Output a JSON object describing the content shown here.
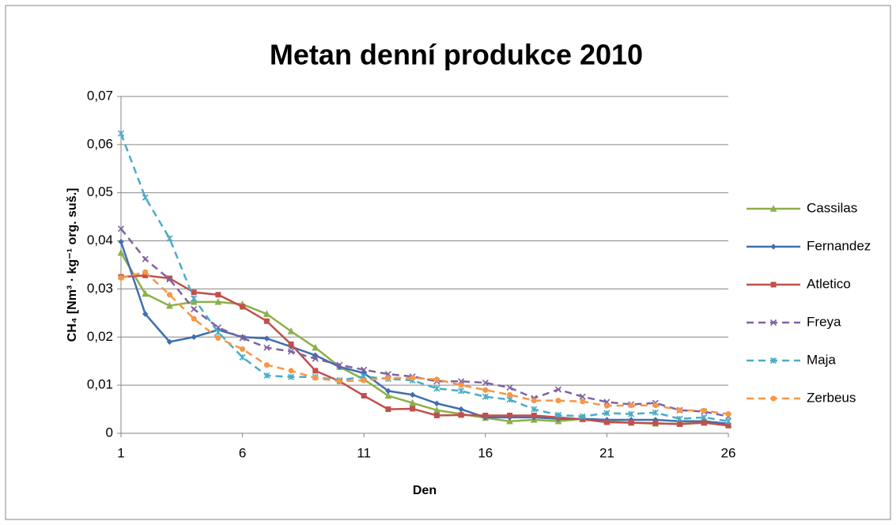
{
  "chart_data": {
    "type": "line",
    "title": "Metan denní produkce 2010",
    "x_label": "Den",
    "y_label": "CH₄ [Nm³ · kg⁻¹ org. suš.]",
    "x": [
      1,
      2,
      3,
      4,
      5,
      6,
      7,
      8,
      9,
      10,
      11,
      12,
      13,
      14,
      15,
      16,
      17,
      18,
      19,
      20,
      21,
      22,
      23,
      24,
      25,
      26
    ],
    "xlim": [
      1,
      26
    ],
    "xticks": [
      1,
      6,
      11,
      16,
      21,
      26
    ],
    "ylim": [
      0,
      0.07
    ],
    "yticks": [
      0,
      {
        "value": 0.01,
        "label": "0,01"
      },
      {
        "value": 0.02,
        "label": "0,02"
      },
      {
        "value": 0.03,
        "label": "0,03"
      },
      {
        "value": 0.04,
        "label": "0,04"
      },
      {
        "value": 0.05,
        "label": "0,05"
      },
      {
        "value": 0.06,
        "label": "0,06"
      },
      {
        "value": 0.07,
        "label": "0,07"
      }
    ],
    "grid": true,
    "legend": "right",
    "series": [
      {
        "name": "Cassilas",
        "color": "#8cb04a",
        "marker": "triangle",
        "dashed": false,
        "values": [
          0.0375,
          0.029,
          0.0265,
          0.0273,
          0.0273,
          0.0268,
          0.0248,
          0.0212,
          0.0178,
          0.0138,
          0.0112,
          0.0078,
          0.0063,
          0.0048,
          0.004,
          0.0032,
          0.0025,
          0.0028,
          0.0025,
          0.003,
          0.0025,
          0.0022,
          0.002,
          0.002,
          0.0022,
          0.0018
        ]
      },
      {
        "name": "Fernandez",
        "color": "#3f6fb0",
        "marker": "diamond",
        "dashed": false,
        "values": [
          0.0398,
          0.0248,
          0.019,
          0.02,
          0.0215,
          0.02,
          0.0197,
          0.018,
          0.0162,
          0.0138,
          0.0125,
          0.0088,
          0.008,
          0.0062,
          0.005,
          0.0033,
          0.0033,
          0.0033,
          0.003,
          0.003,
          0.0028,
          0.0028,
          0.0028,
          0.0025,
          0.0025,
          0.002
        ]
      },
      {
        "name": "Atletico",
        "color": "#c0504d",
        "marker": "square",
        "dashed": false,
        "values": [
          0.0325,
          0.0328,
          0.0322,
          0.0293,
          0.0288,
          0.0263,
          0.0233,
          0.0185,
          0.013,
          0.0108,
          0.0078,
          0.005,
          0.0051,
          0.0037,
          0.0038,
          0.0037,
          0.0037,
          0.0037,
          0.0033,
          0.0029,
          0.0023,
          0.0022,
          0.0021,
          0.0019,
          0.0022,
          0.0016
        ]
      },
      {
        "name": "Freya",
        "color": "#7e63a0",
        "marker": "x",
        "dashed": true,
        "values": [
          0.0425,
          0.0362,
          0.032,
          0.0258,
          0.022,
          0.0198,
          0.0178,
          0.017,
          0.0155,
          0.0142,
          0.0132,
          0.0123,
          0.0118,
          0.0108,
          0.0108,
          0.0105,
          0.0095,
          0.0073,
          0.0091,
          0.0076,
          0.0065,
          0.006,
          0.0063,
          0.0048,
          0.0045,
          0.0035
        ]
      },
      {
        "name": "Maja",
        "color": "#4bacc6",
        "marker": "star",
        "dashed": true,
        "values": [
          0.0623,
          0.049,
          0.0405,
          0.028,
          0.021,
          0.0158,
          0.012,
          0.0117,
          0.0117,
          0.011,
          0.0118,
          0.0113,
          0.011,
          0.0093,
          0.0088,
          0.0076,
          0.007,
          0.005,
          0.0038,
          0.0035,
          0.0042,
          0.004,
          0.0043,
          0.003,
          0.0033,
          0.0025
        ]
      },
      {
        "name": "Zerbeus",
        "color": "#f79646",
        "marker": "circle",
        "dashed": true,
        "values": [
          0.0323,
          0.0335,
          0.0288,
          0.0238,
          0.0198,
          0.0175,
          0.0142,
          0.013,
          0.0115,
          0.0108,
          0.011,
          0.0115,
          0.0115,
          0.0112,
          0.01,
          0.009,
          0.008,
          0.0068,
          0.0068,
          0.0066,
          0.0057,
          0.0058,
          0.0058,
          0.0048,
          0.0047,
          0.004
        ]
      }
    ]
  }
}
